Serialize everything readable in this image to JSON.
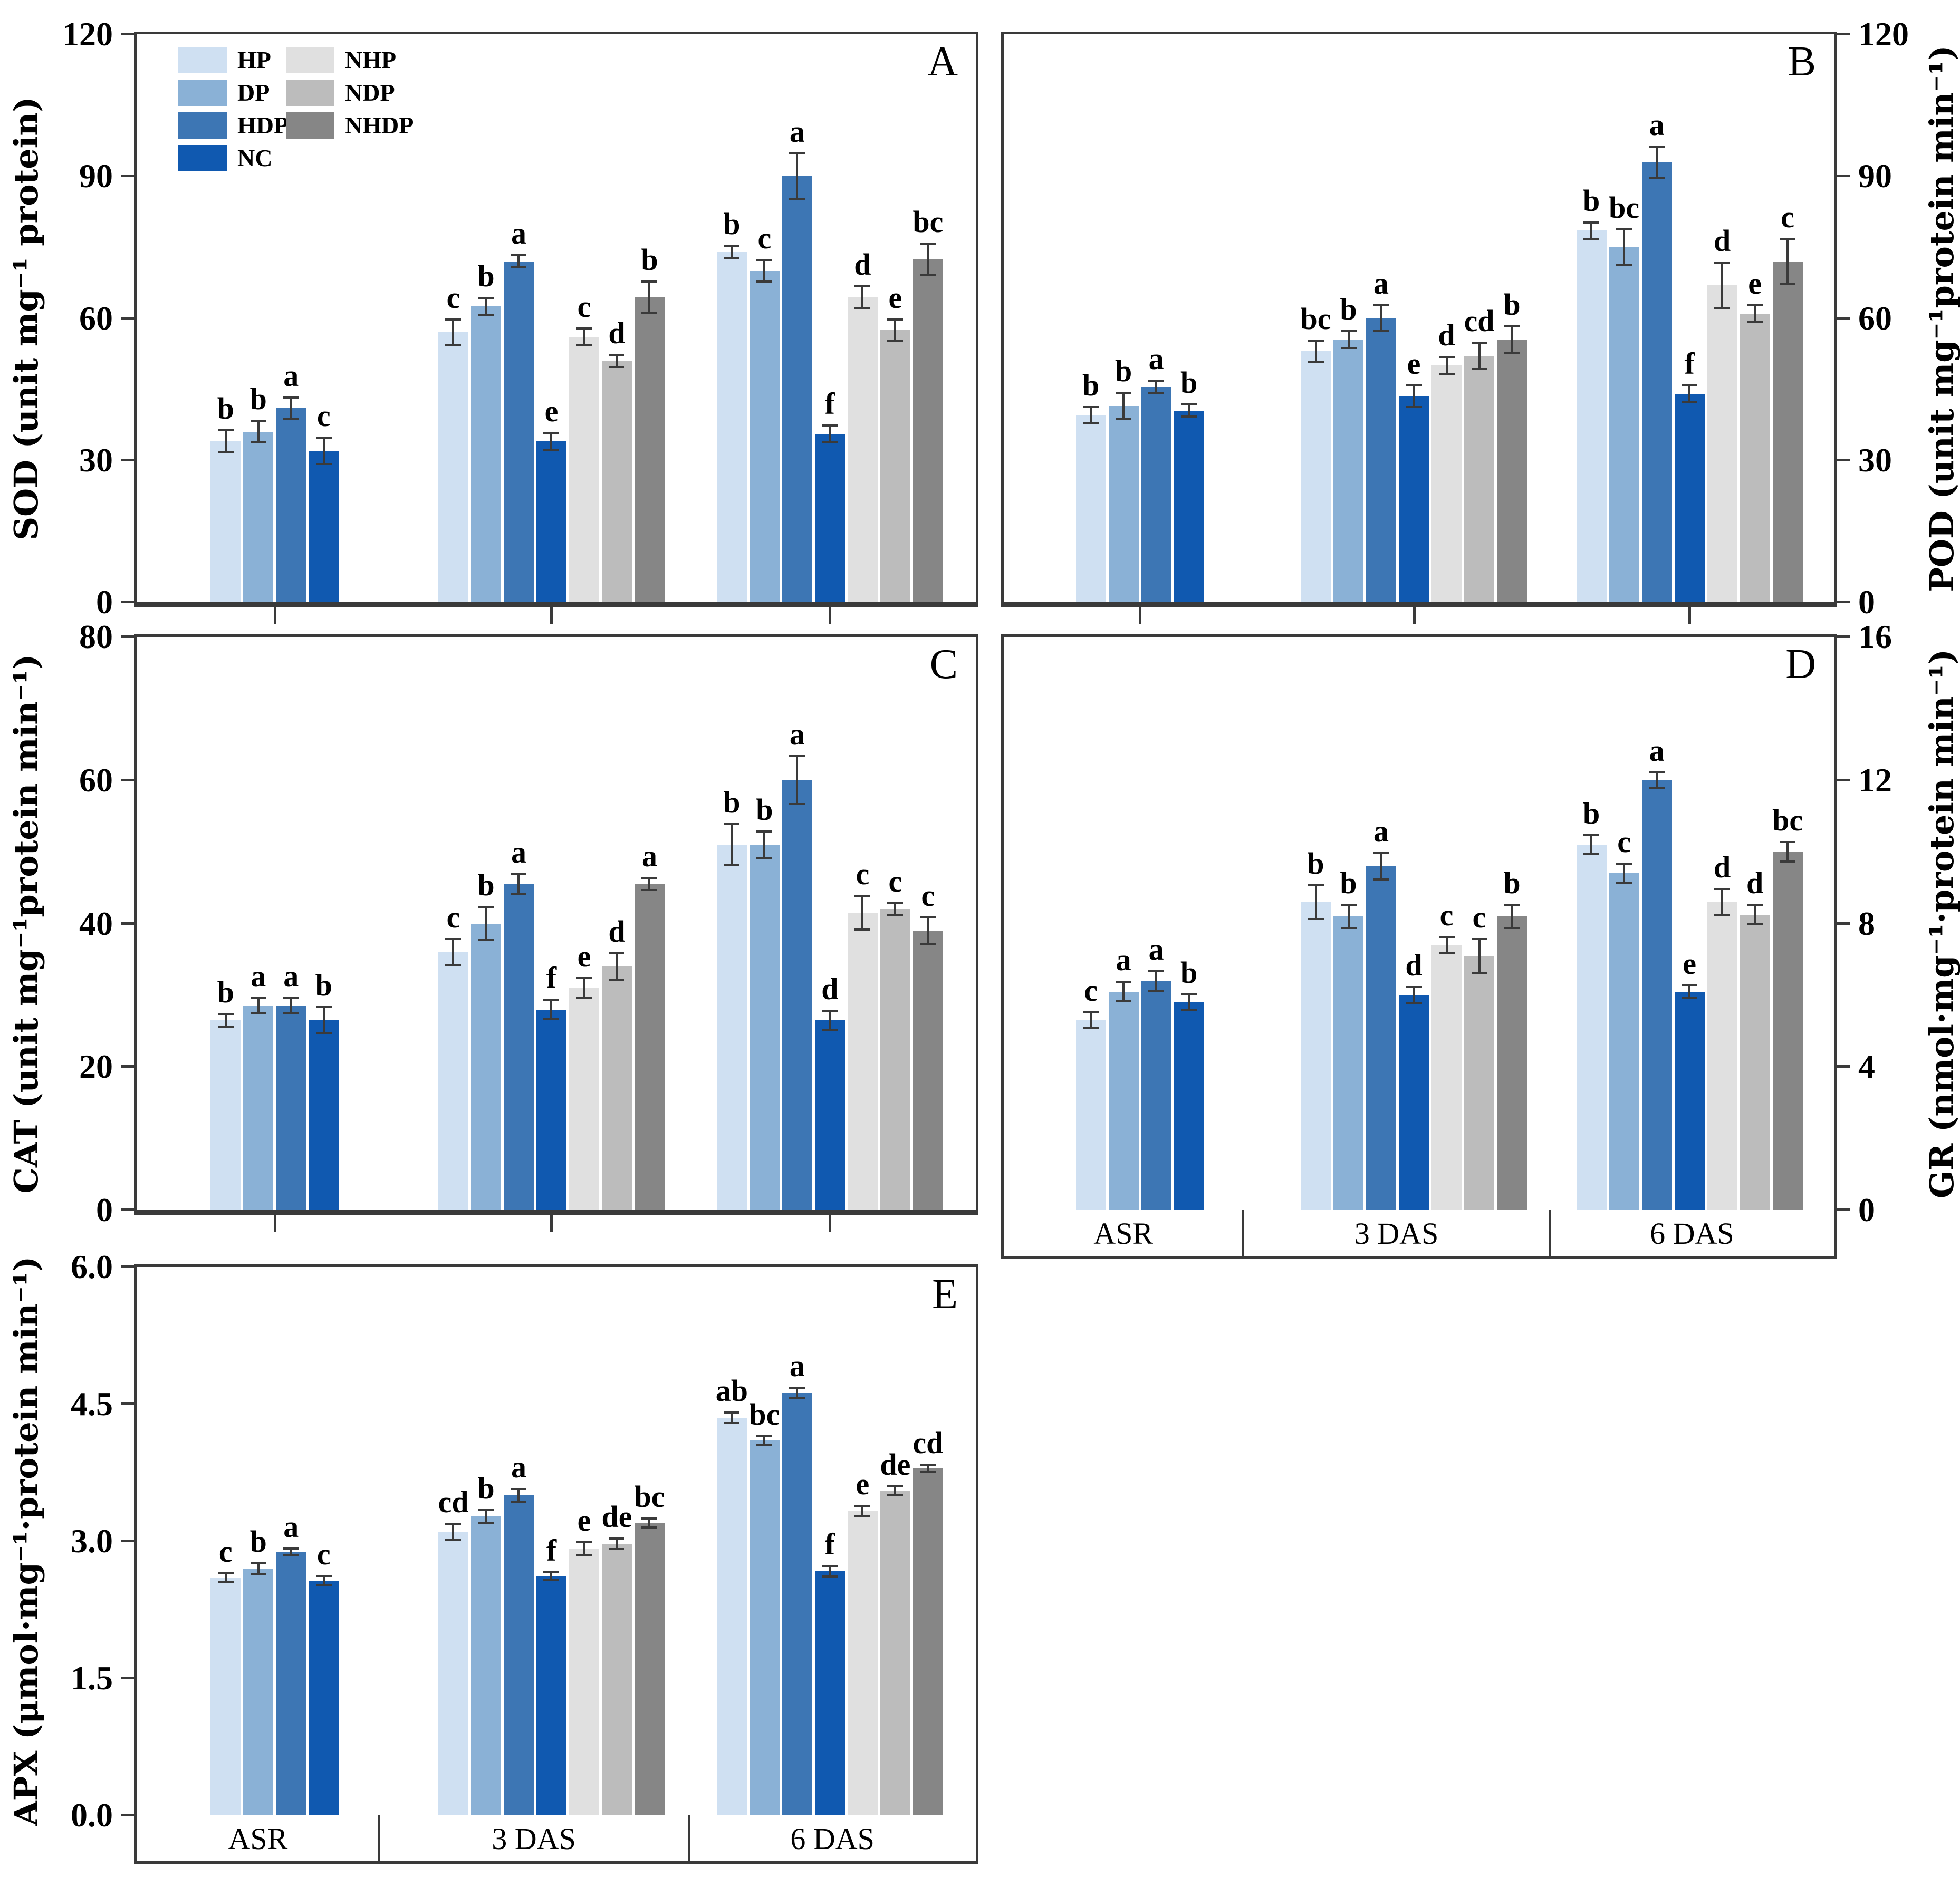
{
  "legend": {
    "position": "top-left of panel A",
    "items": [
      {
        "label": "HP",
        "color": "#cfe0f2"
      },
      {
        "label": "DP",
        "color": "#8ab1d6"
      },
      {
        "label": "HDP",
        "color": "#3d76b4"
      },
      {
        "label": "NC",
        "color": "#1059b0"
      },
      {
        "label": "NHP",
        "color": "#e0e0e0"
      },
      {
        "label": "NDP",
        "color": "#bcbcbc"
      },
      {
        "label": "NHDP",
        "color": "#868686"
      }
    ]
  },
  "colors": {
    "axis_frame": "#3a3a3a",
    "error_bar": "#3a3a3a",
    "text": "#000000",
    "background": "#ffffff"
  },
  "x_axis": {
    "categories": [
      "ASR",
      "3 DAS",
      "6 DAS"
    ]
  },
  "chart_data": [
    {
      "panel_label": "A",
      "type": "bar",
      "ylabel": "SOD (unit mg⁻¹ protein)",
      "axis_side": "left",
      "ylim": [
        0,
        120
      ],
      "ytick_labels": [
        "0",
        "30",
        "60",
        "90",
        "120"
      ],
      "categories": [
        "ASR",
        "3 DAS",
        "6 DAS"
      ],
      "show_category_labels": false,
      "grid": false,
      "series": [
        {
          "name": "HP",
          "values": [
            34,
            57,
            74
          ],
          "errors": [
            2.5,
            3,
            1.5
          ],
          "letters": [
            "b",
            "c",
            "b"
          ]
        },
        {
          "name": "DP",
          "values": [
            36,
            62.5,
            70
          ],
          "errors": [
            2.5,
            2,
            2.5
          ],
          "letters": [
            "b",
            "b",
            "c"
          ]
        },
        {
          "name": "HDP",
          "values": [
            41,
            72,
            90
          ],
          "errors": [
            2.5,
            1.5,
            5
          ],
          "letters": [
            "a",
            "a",
            "a"
          ]
        },
        {
          "name": "NC",
          "values": [
            32,
            34,
            35.5
          ],
          "errors": [
            3,
            2,
            2
          ],
          "letters": [
            "c",
            "e",
            "f"
          ]
        },
        {
          "name": "NHP",
          "values": [
            null,
            56,
            64.5
          ],
          "errors": [
            null,
            2,
            2.5
          ],
          "letters": [
            null,
            "c",
            "d"
          ]
        },
        {
          "name": "NDP",
          "values": [
            null,
            51,
            57.5
          ],
          "errors": [
            null,
            1.5,
            2.5
          ],
          "letters": [
            null,
            "d",
            "e"
          ]
        },
        {
          "name": "NHDP",
          "values": [
            null,
            64.5,
            72.5
          ],
          "errors": [
            null,
            3.5,
            3.5
          ],
          "letters": [
            null,
            "b",
            "bc"
          ]
        }
      ]
    },
    {
      "panel_label": "B",
      "type": "bar",
      "ylabel": "POD (unit mg⁻¹protein min⁻¹)",
      "axis_side": "right",
      "ylim": [
        0,
        120
      ],
      "ytick_labels": [
        "0",
        "30",
        "60",
        "90",
        "120"
      ],
      "categories": [
        "ASR",
        "3 DAS",
        "6 DAS"
      ],
      "show_category_labels": false,
      "grid": false,
      "series": [
        {
          "name": "HP",
          "values": [
            39.5,
            53,
            78.5
          ],
          "errors": [
            2,
            2.5,
            2
          ],
          "letters": [
            "b",
            "bc",
            "b"
          ]
        },
        {
          "name": "DP",
          "values": [
            41.5,
            55.5,
            75
          ],
          "errors": [
            3,
            2,
            4
          ],
          "letters": [
            "b",
            "b",
            "bc"
          ]
        },
        {
          "name": "HDP",
          "values": [
            45.5,
            60,
            93
          ],
          "errors": [
            1.5,
            3,
            3.5
          ],
          "letters": [
            "a",
            "a",
            "a"
          ]
        },
        {
          "name": "NC",
          "values": [
            40.5,
            43.5,
            44
          ],
          "errors": [
            1.5,
            2.5,
            2
          ],
          "letters": [
            "b",
            "e",
            "f"
          ]
        },
        {
          "name": "NHP",
          "values": [
            null,
            50,
            67
          ],
          "errors": [
            null,
            2,
            5
          ],
          "letters": [
            null,
            "d",
            "d"
          ]
        },
        {
          "name": "NDP",
          "values": [
            null,
            52,
            61
          ],
          "errors": [
            null,
            3,
            2
          ],
          "letters": [
            null,
            "cd",
            "e"
          ]
        },
        {
          "name": "NHDP",
          "values": [
            null,
            55.5,
            72
          ],
          "errors": [
            null,
            3,
            5
          ],
          "letters": [
            null,
            "b",
            "c"
          ]
        }
      ]
    },
    {
      "panel_label": "C",
      "type": "bar",
      "ylabel": "CAT (unit mg⁻¹protein min⁻¹)",
      "axis_side": "left",
      "ylim": [
        0,
        80
      ],
      "ytick_labels": [
        "0",
        "20",
        "40",
        "60",
        "80"
      ],
      "categories": [
        "ASR",
        "3 DAS",
        "6 DAS"
      ],
      "show_category_labels": false,
      "grid": false,
      "series": [
        {
          "name": "HP",
          "values": [
            26.5,
            36,
            51
          ],
          "errors": [
            1,
            2,
            3
          ],
          "letters": [
            "b",
            "c",
            "b"
          ]
        },
        {
          "name": "DP",
          "values": [
            28.5,
            40,
            51
          ],
          "errors": [
            1.2,
            2.5,
            2
          ],
          "letters": [
            "a",
            "b",
            "b"
          ]
        },
        {
          "name": "HDP",
          "values": [
            28.5,
            45.5,
            60
          ],
          "errors": [
            1.2,
            1.5,
            3.5
          ],
          "letters": [
            "a",
            "a",
            "a"
          ]
        },
        {
          "name": "NC",
          "values": [
            26.5,
            28,
            26.5
          ],
          "errors": [
            2,
            1.5,
            1.5
          ],
          "letters": [
            "b",
            "f",
            "d"
          ]
        },
        {
          "name": "NHP",
          "values": [
            null,
            31,
            41.5
          ],
          "errors": [
            null,
            1.5,
            2.5
          ],
          "letters": [
            null,
            "e",
            "c"
          ]
        },
        {
          "name": "NDP",
          "values": [
            null,
            34,
            42
          ],
          "errors": [
            null,
            2,
            1
          ],
          "letters": [
            null,
            "d",
            "c"
          ]
        },
        {
          "name": "NHDP",
          "values": [
            null,
            45.5,
            39
          ],
          "errors": [
            null,
            1,
            2
          ],
          "letters": [
            null,
            "a",
            "c"
          ]
        }
      ]
    },
    {
      "panel_label": "D",
      "type": "bar",
      "ylabel": "GR (nmol·mg⁻¹·protein min⁻¹)",
      "axis_side": "right",
      "ylim": [
        0,
        16
      ],
      "ytick_labels": [
        "0",
        "4",
        "8",
        "12",
        "16"
      ],
      "categories": [
        "ASR",
        "3 DAS",
        "6 DAS"
      ],
      "show_category_labels": true,
      "grid": false,
      "series": [
        {
          "name": "HP",
          "values": [
            5.3,
            8.6,
            10.2
          ],
          "errors": [
            0.25,
            0.5,
            0.3
          ],
          "letters": [
            "c",
            "b",
            "b"
          ]
        },
        {
          "name": "DP",
          "values": [
            6.1,
            8.2,
            9.4
          ],
          "errors": [
            0.3,
            0.35,
            0.3
          ],
          "letters": [
            "a",
            "b",
            "c"
          ]
        },
        {
          "name": "HDP",
          "values": [
            6.4,
            9.6,
            12.0
          ],
          "errors": [
            0.3,
            0.4,
            0.25
          ],
          "letters": [
            "a",
            "a",
            "a"
          ]
        },
        {
          "name": "NC",
          "values": [
            5.8,
            6.0,
            6.1
          ],
          "errors": [
            0.25,
            0.25,
            0.2
          ],
          "letters": [
            "b",
            "d",
            "e"
          ]
        },
        {
          "name": "NHP",
          "values": [
            null,
            7.4,
            8.6
          ],
          "errors": [
            null,
            0.25,
            0.4
          ],
          "letters": [
            null,
            "c",
            "d"
          ]
        },
        {
          "name": "NDP",
          "values": [
            null,
            7.1,
            8.25
          ],
          "errors": [
            null,
            0.5,
            0.3
          ],
          "letters": [
            null,
            "c",
            "d"
          ]
        },
        {
          "name": "NHDP",
          "values": [
            null,
            8.2,
            10.0
          ],
          "errors": [
            null,
            0.35,
            0.3
          ],
          "letters": [
            null,
            "b",
            "bc"
          ]
        }
      ]
    },
    {
      "panel_label": "E",
      "type": "bar",
      "ylabel": "APX (μmol·mg⁻¹·protein min⁻¹)",
      "axis_side": "left",
      "ylim": [
        0,
        6
      ],
      "ytick_labels": [
        "0.0",
        "1.5",
        "3.0",
        "4.5",
        "6.0"
      ],
      "categories": [
        "ASR",
        "3 DAS",
        "6 DAS"
      ],
      "show_category_labels": true,
      "grid": false,
      "series": [
        {
          "name": "HP",
          "values": [
            2.6,
            3.1,
            4.35
          ],
          "errors": [
            0.06,
            0.1,
            0.07
          ],
          "letters": [
            "c",
            "cd",
            "ab"
          ]
        },
        {
          "name": "DP",
          "values": [
            2.7,
            3.27,
            4.1
          ],
          "errors": [
            0.07,
            0.08,
            0.06
          ],
          "letters": [
            "b",
            "b",
            "bc"
          ]
        },
        {
          "name": "HDP",
          "values": [
            2.88,
            3.5,
            4.62
          ],
          "errors": [
            0.05,
            0.08,
            0.07
          ],
          "letters": [
            "a",
            "a",
            "a"
          ]
        },
        {
          "name": "NC",
          "values": [
            2.57,
            2.62,
            2.67
          ],
          "errors": [
            0.06,
            0.05,
            0.07
          ],
          "letters": [
            "c",
            "f",
            "f"
          ]
        },
        {
          "name": "NHP",
          "values": [
            null,
            2.92,
            3.33
          ],
          "errors": [
            null,
            0.08,
            0.07
          ],
          "letters": [
            null,
            "e",
            "e"
          ]
        },
        {
          "name": "NDP",
          "values": [
            null,
            2.97,
            3.55
          ],
          "errors": [
            null,
            0.07,
            0.06
          ],
          "letters": [
            null,
            "de",
            "de"
          ]
        },
        {
          "name": "NHDP",
          "values": [
            null,
            3.2,
            3.8
          ],
          "errors": [
            null,
            0.06,
            0.05
          ],
          "letters": [
            null,
            "bc",
            "cd"
          ]
        }
      ]
    }
  ]
}
